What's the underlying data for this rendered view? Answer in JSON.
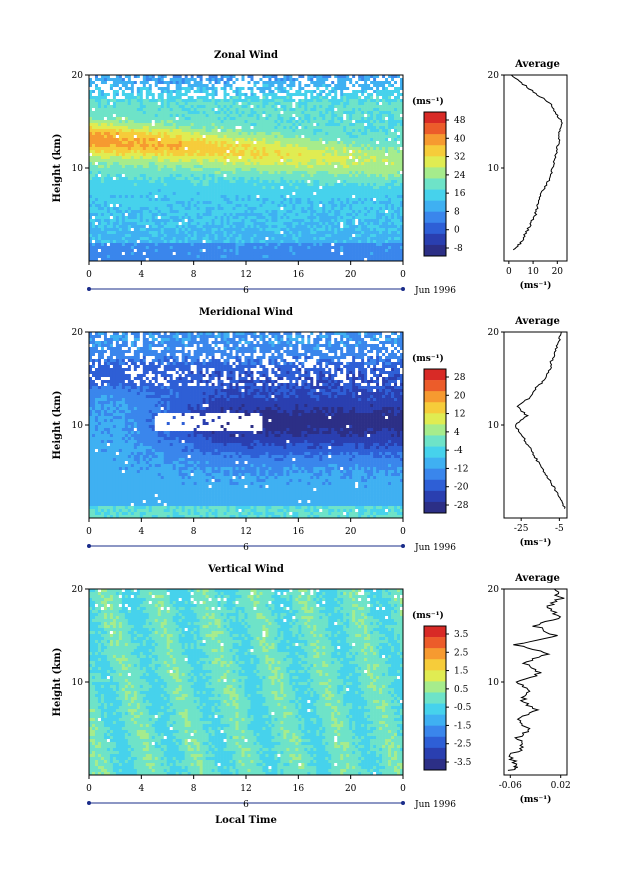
{
  "chart_data": [
    {
      "type": "heatmap",
      "title": "Zonal Wind",
      "ylabel": "Height (km)",
      "ylim": [
        0,
        20
      ],
      "y_ticks": [
        "20",
        "10"
      ],
      "x_ticks": [
        "0",
        "4",
        "8",
        "12",
        "16",
        "20",
        "0"
      ],
      "date_marker": "6",
      "date_label": "Jun 1996",
      "colorbar": {
        "unit": "(ms⁻¹)",
        "ticks": [
          "48",
          "40",
          "32",
          "24",
          "16",
          "8",
          "0",
          "-8"
        ],
        "colors": [
          "#2c2f86",
          "#2a3fb0",
          "#2e5fd6",
          "#3a86ec",
          "#3fb0f2",
          "#46d2ec",
          "#6ee3c8",
          "#a6ec8c",
          "#e0ec52",
          "#f6cc3a",
          "#f69a30",
          "#ec5c2a",
          "#d82a26"
        ]
      },
      "average": {
        "title": "Average",
        "xlabel": "(ms⁻¹)",
        "x_ticks": [
          "0",
          "10",
          "20"
        ],
        "y_ticks": [
          "20",
          "10"
        ],
        "xlim": [
          -2,
          24
        ],
        "profile": [
          [
            2,
            1.2
          ],
          [
            5,
            2
          ],
          [
            7,
            3
          ],
          [
            9,
            4
          ],
          [
            11,
            5
          ],
          [
            12,
            6
          ],
          [
            13,
            7
          ],
          [
            15,
            8
          ],
          [
            17,
            9
          ],
          [
            18,
            10
          ],
          [
            19,
            11
          ],
          [
            20,
            12
          ],
          [
            21,
            13
          ],
          [
            21,
            14
          ],
          [
            22,
            15
          ],
          [
            19,
            16
          ],
          [
            17,
            17
          ],
          [
            11,
            18
          ],
          [
            6,
            19
          ],
          [
            1,
            20
          ]
        ]
      }
    },
    {
      "type": "heatmap",
      "title": "Meridional Wind",
      "ylabel": "Height (km)",
      "ylim": [
        0,
        20
      ],
      "y_ticks": [
        "20",
        "10"
      ],
      "x_ticks": [
        "0",
        "4",
        "8",
        "12",
        "16",
        "20",
        "0"
      ],
      "date_marker": "6",
      "date_label": "Jun 1996",
      "colorbar": {
        "unit": "(ms⁻¹)",
        "ticks": [
          "28",
          "20",
          "12",
          "4",
          "-4",
          "-12",
          "-20",
          "-28"
        ],
        "colors": [
          "#2c2f86",
          "#2a3fb0",
          "#2e5fd6",
          "#3a86ec",
          "#3fb0f2",
          "#46d2ec",
          "#6ee3c8",
          "#a6ec8c",
          "#e0ec52",
          "#f6cc3a",
          "#f69a30",
          "#ec5c2a",
          "#d82a26"
        ]
      },
      "average": {
        "title": "Average",
        "xlabel": "(ms⁻¹)",
        "x_ticks": [
          "-25",
          "-5"
        ],
        "y_ticks": [
          "20",
          "10"
        ],
        "xlim": [
          -34,
          -1
        ],
        "profile": [
          [
            -2,
            1
          ],
          [
            -4,
            2
          ],
          [
            -7,
            3
          ],
          [
            -10,
            4
          ],
          [
            -13,
            5
          ],
          [
            -16,
            6
          ],
          [
            -19,
            7
          ],
          [
            -22,
            8
          ],
          [
            -25,
            9
          ],
          [
            -28,
            10
          ],
          [
            -22,
            11
          ],
          [
            -27,
            12
          ],
          [
            -20,
            13
          ],
          [
            -17,
            14
          ],
          [
            -12,
            15
          ],
          [
            -10,
            16
          ],
          [
            -9,
            17
          ],
          [
            -7,
            18
          ],
          [
            -5,
            19
          ],
          [
            -4,
            20
          ]
        ]
      }
    },
    {
      "type": "heatmap",
      "title": "Vertical Wind",
      "ylabel": "Height (km)",
      "xlabel": "Local Time",
      "ylim": [
        0,
        20
      ],
      "y_ticks": [
        "20",
        "10"
      ],
      "x_ticks": [
        "0",
        "4",
        "8",
        "12",
        "16",
        "20",
        "0"
      ],
      "date_marker": "6",
      "date_label": "Jun 1996",
      "colorbar": {
        "unit": "(ms⁻¹)",
        "ticks": [
          "3.5",
          "2.5",
          "1.5",
          "0.5",
          "-0.5",
          "-1.5",
          "-2.5",
          "-3.5"
        ],
        "colors": [
          "#2c2f86",
          "#2a3fb0",
          "#2e5fd6",
          "#3a86ec",
          "#3fb0f2",
          "#46d2ec",
          "#6ee3c8",
          "#a6ec8c",
          "#e0ec52",
          "#f6cc3a",
          "#f69a30",
          "#ec5c2a",
          "#d82a26"
        ]
      },
      "average": {
        "title": "Average",
        "xlabel": "(ms⁻¹)",
        "x_ticks": [
          "-0.06",
          "0.02"
        ],
        "y_ticks": [
          "20",
          "10"
        ],
        "xlim": [
          -0.07,
          0.03
        ],
        "profile": [
          [
            -0.06,
            0.5
          ],
          [
            -0.05,
            1
          ],
          [
            -0.06,
            2
          ],
          [
            -0.04,
            3
          ],
          [
            -0.05,
            4
          ],
          [
            -0.03,
            5
          ],
          [
            -0.05,
            6
          ],
          [
            -0.02,
            7
          ],
          [
            -0.04,
            8
          ],
          [
            -0.03,
            9
          ],
          [
            -0.05,
            10
          ],
          [
            -0.01,
            11
          ],
          [
            -0.04,
            12
          ],
          [
            0.0,
            13
          ],
          [
            -0.05,
            14
          ],
          [
            0.01,
            15
          ],
          [
            -0.02,
            16
          ],
          [
            0.02,
            17
          ],
          [
            0.0,
            18
          ],
          [
            0.02,
            19
          ],
          [
            0.01,
            20
          ]
        ]
      }
    }
  ]
}
